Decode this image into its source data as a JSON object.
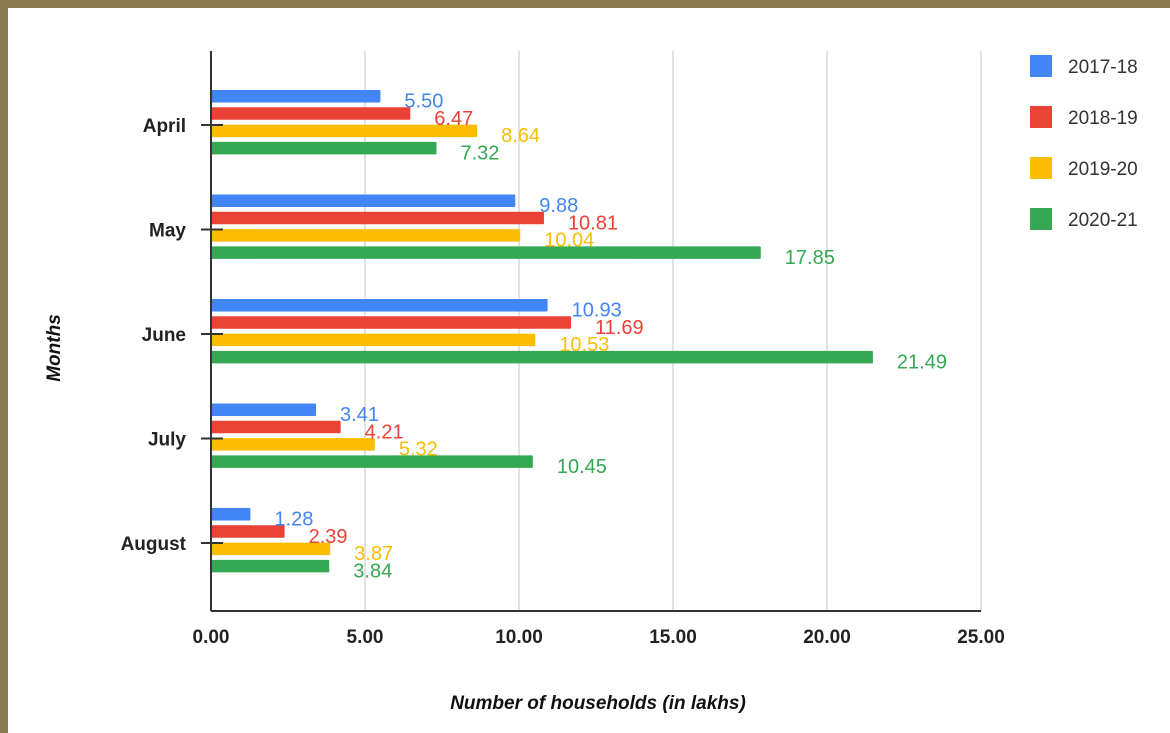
{
  "chart_data": {
    "type": "bar",
    "orientation": "horizontal",
    "title": "",
    "xlabel": "Number of households (in lakhs)",
    "ylabel": "Months",
    "xlim": [
      0,
      25
    ],
    "x_ticks": [
      "0.00",
      "5.00",
      "10.00",
      "15.00",
      "20.00",
      "25.00"
    ],
    "grid": true,
    "legend_position": "right",
    "categories": [
      "April",
      "May",
      "June",
      "July",
      "August"
    ],
    "series": [
      {
        "name": "2017-18",
        "color": "#4285f4",
        "values": [
          5.5,
          9.88,
          10.93,
          3.41,
          1.28
        ],
        "labels": [
          "5.50",
          "9.88",
          "10.93",
          "3.41",
          "1.28"
        ]
      },
      {
        "name": "2018-19",
        "color": "#ea4335",
        "values": [
          6.47,
          10.81,
          11.69,
          4.21,
          2.39
        ],
        "labels": [
          "6.47",
          "10.81",
          "11.69",
          "4.21",
          "2.39"
        ]
      },
      {
        "name": "2019-20",
        "color": "#fbbc04",
        "values": [
          8.64,
          10.04,
          10.53,
          5.32,
          3.87
        ],
        "labels": [
          "8.64",
          "10.04",
          "10.53",
          "5.32",
          "3.87"
        ]
      },
      {
        "name": "2020-21",
        "color": "#34a853",
        "values": [
          7.32,
          17.85,
          21.49,
          10.45,
          3.84
        ],
        "labels": [
          "7.32",
          "17.85",
          "21.49",
          "10.45",
          "3.84"
        ]
      }
    ]
  }
}
